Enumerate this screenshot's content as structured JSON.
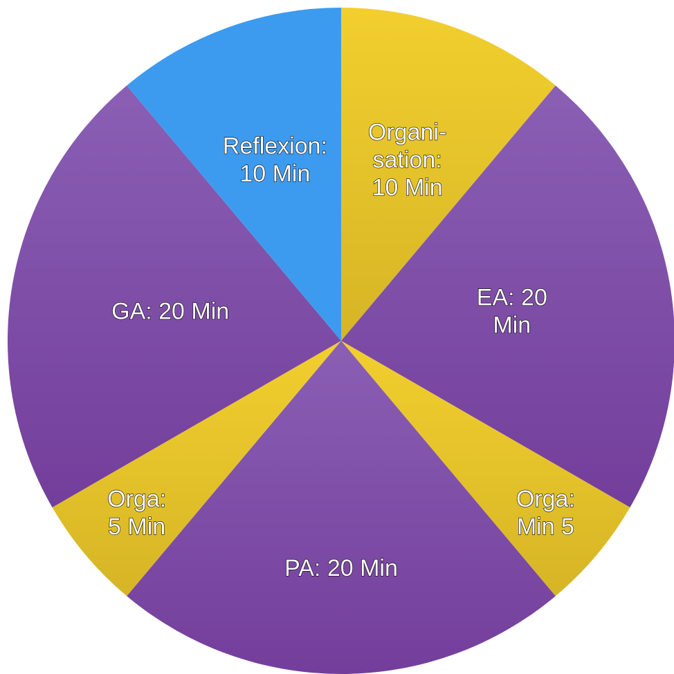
{
  "chart_data": {
    "type": "pie",
    "start_angle_deg": 0,
    "direction": "clockwise",
    "slices": [
      {
        "label_lines": [
          "Organi-",
          "sation:",
          "10 Min"
        ],
        "value": 10,
        "color": "#F2CF2E",
        "color_dark": "#D6B526",
        "label_r": 0.58
      },
      {
        "label_lines": [
          "EA: 20",
          "Min"
        ],
        "value": 20,
        "color": "#8A5FB4",
        "color_dark": "#733E9B",
        "label_r": 0.52
      },
      {
        "label_lines": [
          "Orga:",
          "Min 5"
        ],
        "value": 5,
        "color": "#F2CF2E",
        "color_dark": "#D6B526",
        "label_r": 0.8
      },
      {
        "label_lines": [
          "PA: 20 Min"
        ],
        "value": 20,
        "color": "#8A5FB4",
        "color_dark": "#733E9B",
        "label_r": 0.68
      },
      {
        "label_lines": [
          "Orga:",
          "5 Min"
        ],
        "value": 5,
        "color": "#F2CF2E",
        "color_dark": "#D6B526",
        "label_r": 0.8
      },
      {
        "label_lines": [
          "GA: 20 Min"
        ],
        "value": 20,
        "color": "#8A5FB4",
        "color_dark": "#733E9B",
        "label_r": 0.52
      },
      {
        "label_lines": [
          "Reflexion:",
          "10 Min"
        ],
        "value": 10,
        "color": "#3D9BEF",
        "color_dark": "#3D9BEF",
        "label_r": 0.58
      }
    ]
  }
}
